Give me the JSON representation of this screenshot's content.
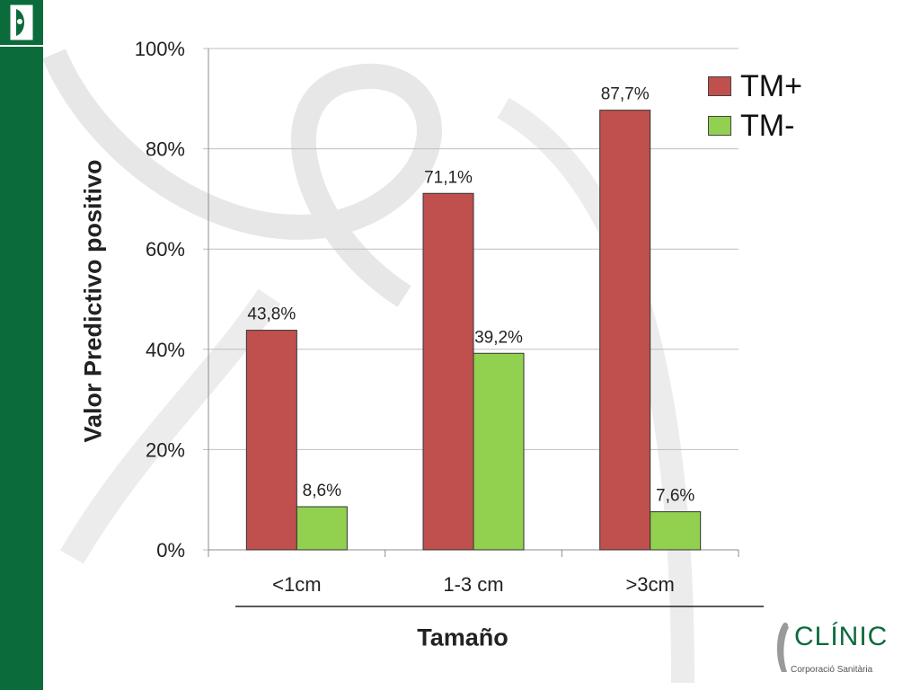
{
  "chart_data": {
    "type": "bar",
    "categories": [
      "<1cm",
      "1-3 cm",
      ">3cm"
    ],
    "series": [
      {
        "name": "TM+",
        "values": [
          43.8,
          71.1,
          87.7
        ],
        "labels": [
          "43,8%",
          "71,1%",
          "87,7%"
        ],
        "color": "#c0504d"
      },
      {
        "name": "TM-",
        "values": [
          8.6,
          39.2,
          7.6
        ],
        "labels": [
          "8,6%",
          "39,2%",
          "7,6%"
        ],
        "color": "#92d050"
      }
    ],
    "ylim": [
      0,
      100
    ],
    "yticks": [
      "0%",
      "20%",
      "40%",
      "60%",
      "80%",
      "100%"
    ],
    "xlabel": "Tamaño",
    "ylabel": "Valor Predictivo positivo",
    "grid": true,
    "legend": "top-right"
  },
  "branding": {
    "logo_text": "CLÍNIC",
    "logo_subtext": "Corporació Sanitària",
    "accent_color": "#0b6b3a"
  }
}
